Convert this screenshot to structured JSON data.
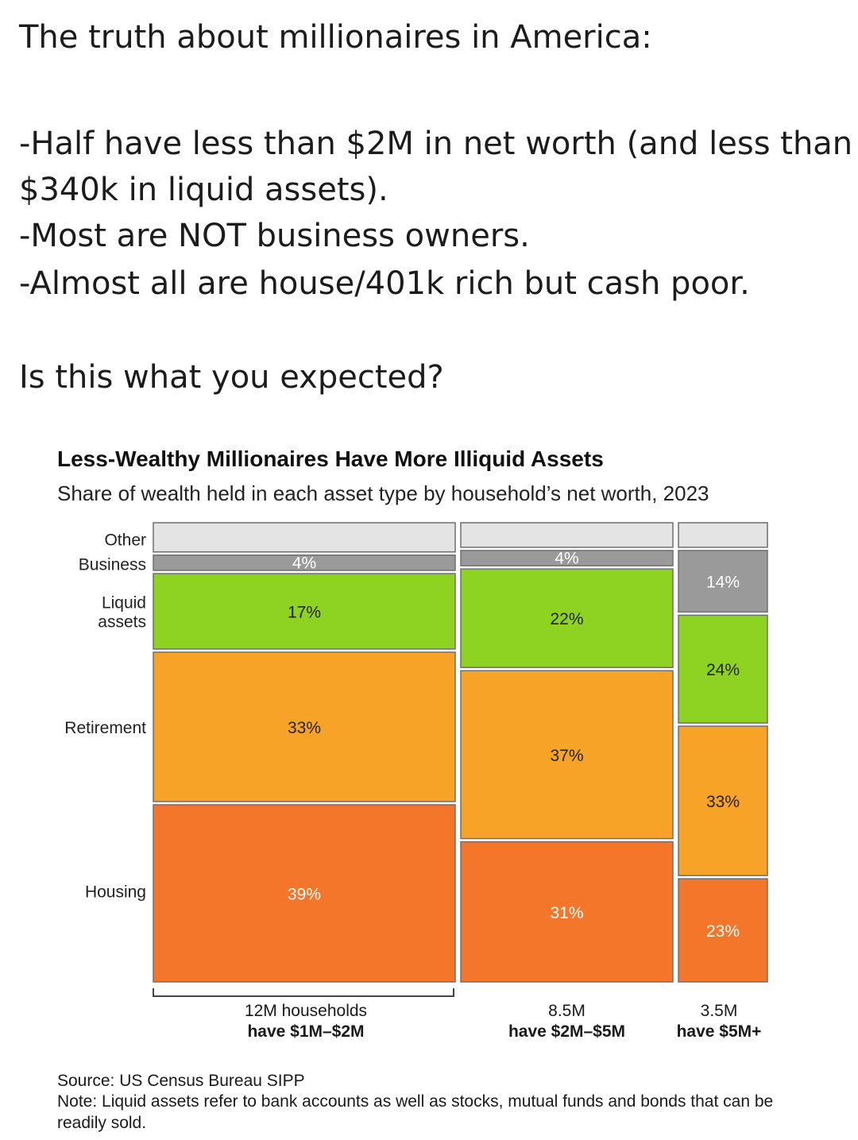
{
  "post": {
    "title": "The truth about millionaires in America:",
    "bullet1a": "-Half have less than $2M in net worth (and less than",
    "bullet1b": "$340k in liquid assets).",
    "bullet2": "-Most are NOT business owners.",
    "bullet3": "-Almost all are house/401k rich but cash poor.",
    "question": "Is this what you expected?"
  },
  "colors": {
    "Other": "#e4e4e4",
    "Business": "#9a9a9a",
    "Liquid assets": "#8ed321",
    "Retirement": "#f7a328",
    "Housing": "#f4762a",
    "border": "#6f6f6f"
  },
  "chart_data": {
    "type": "marimekko",
    "title": "Less-Wealthy Millionaires Have More Illiquid Assets",
    "subtitle": "Share of wealth held in each asset type by household’s net worth, 2023",
    "row_labels": [
      "Other",
      "Business",
      "Liquid",
      "assets",
      "Retirement",
      "Housing"
    ],
    "categories": [
      "Other",
      "Business",
      "Liquid assets",
      "Retirement",
      "Housing"
    ],
    "columns": [
      {
        "households_millions": 12,
        "label_line1": "12M households",
        "label_line2": "have $1M–$2M",
        "values": {
          "Housing": 39,
          "Retirement": 33,
          "Liquid assets": 17,
          "Business": 4,
          "Other": 7
        },
        "labels": {
          "Housing": "39%",
          "Retirement": "33%",
          "Liquid assets": "17%",
          "Business": "4%"
        }
      },
      {
        "households_millions": 8.5,
        "label_line1": "8.5M",
        "label_line2": "have $2M–$5M",
        "values": {
          "Housing": 31,
          "Retirement": 37,
          "Liquid assets": 22,
          "Business": 4,
          "Other": 6
        },
        "labels": {
          "Housing": "31%",
          "Retirement": "37%",
          "Liquid assets": "22%",
          "Business": "4%"
        }
      },
      {
        "households_millions": 3.5,
        "label_line1": "3.5M",
        "label_line2": "have $5M+",
        "values": {
          "Housing": 23,
          "Retirement": 33,
          "Liquid assets": 24,
          "Business": 14,
          "Other": 6
        },
        "labels": {
          "Housing": "23%",
          "Retirement": "33%",
          "Liquid assets": "24%",
          "Business": "14%"
        }
      }
    ],
    "source": "Source: US Census Bureau SIPP",
    "note": "Note: Liquid assets refer to bank accounts as well as stocks, mutual funds and bonds that can be readily sold."
  }
}
